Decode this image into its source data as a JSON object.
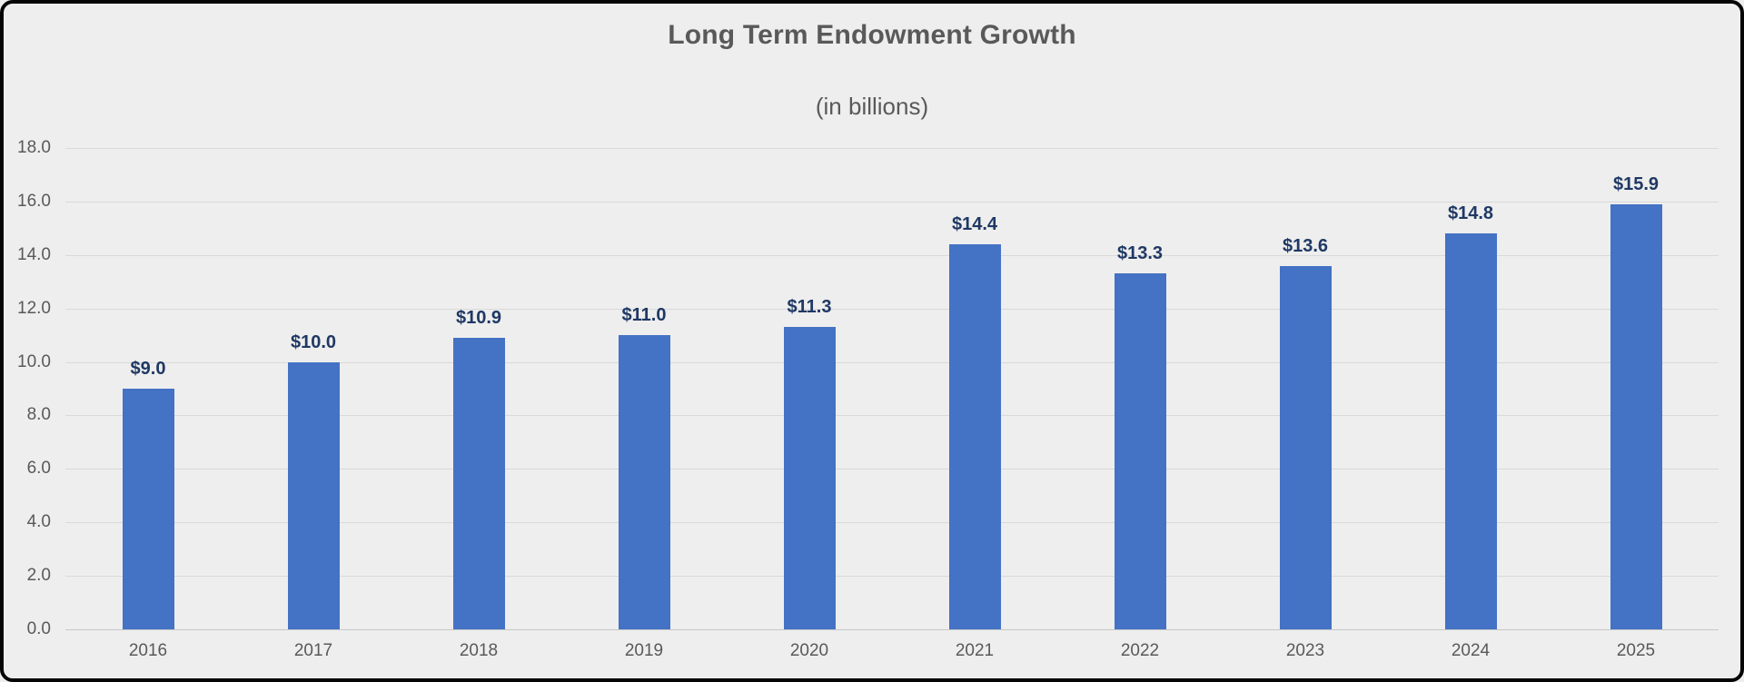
{
  "chart_data": {
    "type": "bar",
    "title": "Long Term Endowment Growth",
    "subtitle": "(in billions)",
    "categories": [
      "2016",
      "2017",
      "2018",
      "2019",
      "2020",
      "2021",
      "2022",
      "2023",
      "2024",
      "2025"
    ],
    "values": [
      9.0,
      10.0,
      10.9,
      11.0,
      11.3,
      14.4,
      13.3,
      13.6,
      14.8,
      15.9
    ],
    "data_labels": [
      "$9.0",
      "$10.0",
      "$10.9",
      "$11.0",
      "$11.3",
      "$14.4",
      "$13.3",
      "$13.6",
      "$14.8",
      "$15.9"
    ],
    "y_tick_labels": [
      "0.0",
      "2.0",
      "4.0",
      "6.0",
      "8.0",
      "10.0",
      "12.0",
      "14.0",
      "16.0",
      "18.0"
    ],
    "y_tick_values": [
      0,
      2,
      4,
      6,
      8,
      10,
      12,
      14,
      16,
      18
    ],
    "ylim": [
      0,
      18
    ],
    "xlabel": "",
    "ylabel": "",
    "grid": true,
    "legend": "none",
    "colors": {
      "bar": "#4472c4",
      "data_label": "#1f3864",
      "axis_text": "#595959",
      "title_text": "#595959",
      "gridline": "#d9d9d9",
      "background": "#eeeeee",
      "frame": "#050505"
    }
  }
}
